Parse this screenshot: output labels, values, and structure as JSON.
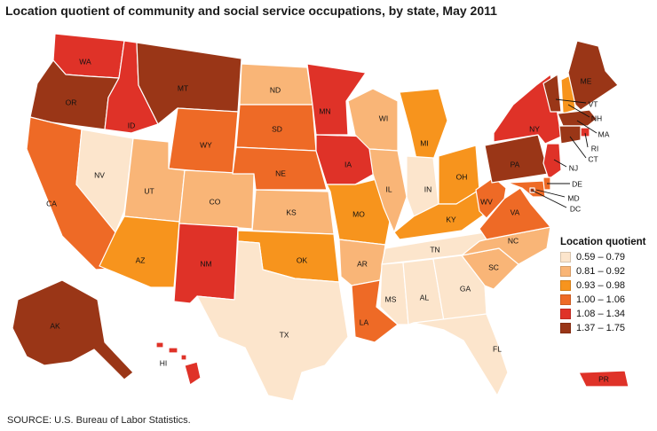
{
  "title": "Location quotient of community and social service occupations, by state, May 2011",
  "source": "SOURCE: U.S. Bureau of Labor Statistics.",
  "legend": {
    "title": "Location quotient",
    "bins": [
      {
        "label": "0.59 – 0.79",
        "color": "#fce5cc"
      },
      {
        "label": "0.81 – 0.92",
        "color": "#f9b577"
      },
      {
        "label": "0.93 – 0.98",
        "color": "#f7941d"
      },
      {
        "label": "1.00 – 1.06",
        "color": "#ee6a26"
      },
      {
        "label": "1.08 – 1.34",
        "color": "#df3228"
      },
      {
        "label": "1.37 – 1.75",
        "color": "#9a3617"
      }
    ]
  },
  "states": [
    {
      "abbr": "WA",
      "bin": 4
    },
    {
      "abbr": "OR",
      "bin": 5
    },
    {
      "abbr": "CA",
      "bin": 3
    },
    {
      "abbr": "NV",
      "bin": 0
    },
    {
      "abbr": "ID",
      "bin": 4
    },
    {
      "abbr": "MT",
      "bin": 5
    },
    {
      "abbr": "WY",
      "bin": 3
    },
    {
      "abbr": "UT",
      "bin": 1
    },
    {
      "abbr": "AZ",
      "bin": 2
    },
    {
      "abbr": "CO",
      "bin": 1
    },
    {
      "abbr": "NM",
      "bin": 4
    },
    {
      "abbr": "ND",
      "bin": 1
    },
    {
      "abbr": "SD",
      "bin": 3
    },
    {
      "abbr": "NE",
      "bin": 3
    },
    {
      "abbr": "KS",
      "bin": 1
    },
    {
      "abbr": "OK",
      "bin": 2
    },
    {
      "abbr": "TX",
      "bin": 0
    },
    {
      "abbr": "MN",
      "bin": 4
    },
    {
      "abbr": "IA",
      "bin": 4
    },
    {
      "abbr": "MO",
      "bin": 2
    },
    {
      "abbr": "AR",
      "bin": 1
    },
    {
      "abbr": "LA",
      "bin": 3
    },
    {
      "abbr": "WI",
      "bin": 1
    },
    {
      "abbr": "IL",
      "bin": 1
    },
    {
      "abbr": "MI",
      "bin": 2
    },
    {
      "abbr": "IN",
      "bin": 0
    },
    {
      "abbr": "OH",
      "bin": 2
    },
    {
      "abbr": "KY",
      "bin": 2
    },
    {
      "abbr": "TN",
      "bin": 0
    },
    {
      "abbr": "MS",
      "bin": 0
    },
    {
      "abbr": "AL",
      "bin": 0
    },
    {
      "abbr": "GA",
      "bin": 0
    },
    {
      "abbr": "FL",
      "bin": 0
    },
    {
      "abbr": "SC",
      "bin": 1
    },
    {
      "abbr": "NC",
      "bin": 1
    },
    {
      "abbr": "VA",
      "bin": 3
    },
    {
      "abbr": "WV",
      "bin": 3
    },
    {
      "abbr": "PA",
      "bin": 5
    },
    {
      "abbr": "NY",
      "bin": 4
    },
    {
      "abbr": "VT",
      "bin": 5
    },
    {
      "abbr": "NH",
      "bin": 2
    },
    {
      "abbr": "ME",
      "bin": 5
    },
    {
      "abbr": "MA",
      "bin": 5
    },
    {
      "abbr": "RI",
      "bin": 4
    },
    {
      "abbr": "CT",
      "bin": 5
    },
    {
      "abbr": "NJ",
      "bin": 4
    },
    {
      "abbr": "DE",
      "bin": 3
    },
    {
      "abbr": "MD",
      "bin": 3
    },
    {
      "abbr": "DC",
      "bin": 5
    },
    {
      "abbr": "AK",
      "bin": 5
    },
    {
      "abbr": "HI",
      "bin": 4
    },
    {
      "abbr": "PR",
      "bin": 4
    }
  ]
}
